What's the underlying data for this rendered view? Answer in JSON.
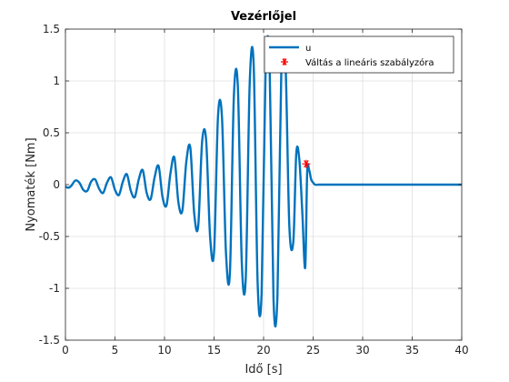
{
  "chart_data": {
    "type": "line",
    "title": "Vezérlőjel",
    "xlabel": "Idő [s]",
    "ylabel": "Nyomaték [Nm]",
    "xlim": [
      0,
      40
    ],
    "ylim": [
      -1.5,
      1.5
    ],
    "xticks": [
      0,
      5,
      10,
      15,
      20,
      25,
      30,
      35,
      40
    ],
    "yticks": [
      -1.5,
      -1,
      -0.5,
      0,
      0.5,
      1,
      1.5
    ],
    "xtick_labels": [
      "0",
      "5",
      "10",
      "15",
      "20",
      "25",
      "30",
      "35",
      "40"
    ],
    "ytick_labels": [
      "-1.5",
      "-1",
      "-0.5",
      "0",
      "0.5",
      "1",
      "1.5"
    ],
    "grid": true,
    "legend_position": "top-right",
    "series": [
      {
        "name": "u",
        "color": "#0072BD",
        "x": [
          0,
          0.3,
          0.6,
          1.0,
          1.4,
          1.8,
          2.2,
          2.6,
          3.0,
          3.4,
          3.8,
          4.2,
          4.6,
          5.0,
          5.4,
          5.8,
          6.2,
          6.6,
          7.0,
          7.4,
          7.8,
          8.2,
          8.6,
          9.0,
          9.4,
          9.8,
          10.2,
          10.6,
          11.0,
          11.4,
          11.8,
          12.2,
          12.6,
          13.0,
          13.4,
          13.8,
          14.2,
          14.6,
          15.0,
          15.4,
          15.8,
          16.2,
          16.6,
          17.0,
          17.4,
          17.8,
          18.2,
          18.6,
          19.0,
          19.4,
          19.8,
          20.2,
          20.6,
          21.0,
          21.4,
          21.8,
          22.2,
          22.6,
          23.0,
          23.3,
          23.6,
          23.9,
          24.2,
          24.4,
          24.6,
          24.8,
          25.0,
          25.2,
          25.6,
          26.0,
          26.5,
          27.0,
          28.0,
          30.0,
          35.0,
          40.0
        ],
        "y": [
          -0.02,
          -0.03,
          -0.01,
          0.04,
          0.02,
          -0.05,
          -0.06,
          0.03,
          0.05,
          -0.04,
          -0.08,
          0.02,
          0.07,
          -0.05,
          -0.1,
          0.03,
          0.1,
          -0.06,
          -0.12,
          0.05,
          0.14,
          -0.08,
          -0.14,
          0.07,
          0.18,
          -0.12,
          -0.2,
          0.11,
          0.26,
          -0.17,
          -0.25,
          0.22,
          0.36,
          -0.28,
          -0.4,
          0.42,
          0.43,
          -0.5,
          -0.65,
          0.66,
          0.65,
          -0.65,
          -0.85,
          0.85,
          0.95,
          -0.75,
          -0.9,
          0.98,
          1.15,
          -0.95,
          -1.05,
          1.1,
          1.2,
          -1.1,
          -1.07,
          1.15,
          1.2,
          -0.4,
          -0.55,
          0.3,
          0.25,
          -0.25,
          -0.8,
          0.12,
          0.14,
          0.05,
          0.02,
          0.0,
          0.0,
          0.0,
          0.0,
          0.0,
          0.0,
          0.0,
          0.0,
          0.0
        ]
      },
      {
        "name": "Váltás a lineáris szabályzóra",
        "color": "#FF0000",
        "marker": "*",
        "x": [
          24.3
        ],
        "y": [
          0.2
        ]
      }
    ]
  }
}
